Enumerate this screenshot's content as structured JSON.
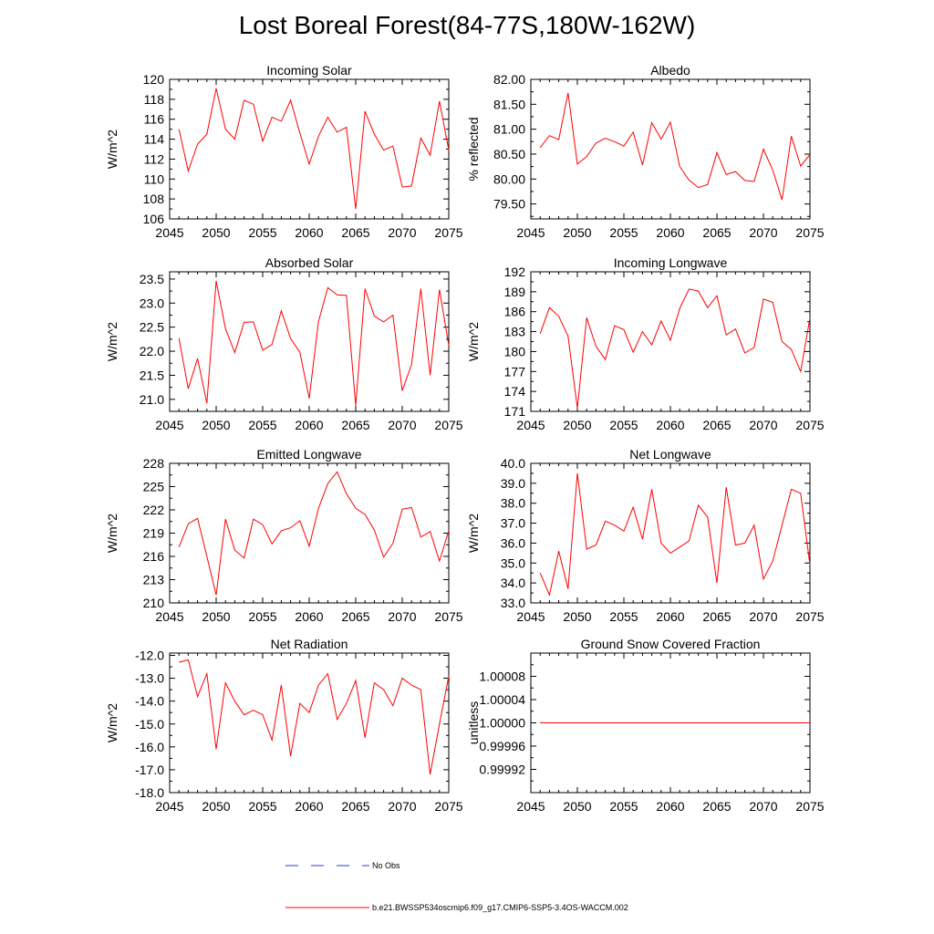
{
  "title": "Lost Boreal Forest(84-77S,180W-162W)",
  "colors": {
    "series": "#ff0000",
    "obs": "#2a3bd6",
    "axis": "#000000"
  },
  "legend": {
    "entries": [
      {
        "label": "No Obs",
        "style": "dashed",
        "color": "#2a3bd6"
      },
      {
        "label": "b.e21.BWSSP534oscmip6.f09_g17.CMIP6-SSP5-3.4OS-WACCM.002",
        "style": "solid",
        "color": "#ff0000"
      }
    ]
  },
  "chart_data": [
    {
      "type": "line",
      "title": "Incoming Solar",
      "ylabel": "W/m^2",
      "xlim": [
        2045,
        2075
      ],
      "ylim": [
        106,
        120
      ],
      "xticks": [
        2045,
        2050,
        2055,
        2060,
        2065,
        2070,
        2075
      ],
      "xtick_labels": [
        "2045",
        "2050",
        "2055",
        "2060",
        "2065",
        "2070",
        "2075"
      ],
      "yticks": [
        106,
        108,
        110,
        112,
        114,
        116,
        118,
        120
      ],
      "ytick_labels": [
        "106",
        "108",
        "110",
        "112",
        "114",
        "116",
        "118",
        "120"
      ],
      "x": [
        2046,
        2047,
        2048,
        2049,
        2050,
        2051,
        2052,
        2053,
        2054,
        2055,
        2056,
        2057,
        2058,
        2059,
        2060,
        2061,
        2062,
        2063,
        2064,
        2065,
        2066,
        2067,
        2068,
        2069,
        2070,
        2071,
        2072,
        2073,
        2074,
        2075
      ],
      "series": [
        {
          "name": "b.e21.BWSSP534oscmip6.f09_g17.CMIP6-SSP5-3.4OS-WACCM.002",
          "values": [
            115.0,
            110.8,
            113.5,
            114.5,
            119.1,
            115.0,
            114.0,
            117.9,
            117.5,
            113.8,
            116.2,
            115.8,
            117.9,
            114.6,
            111.5,
            114.3,
            116.2,
            114.7,
            115.2,
            107.0,
            116.8,
            114.5,
            112.9,
            113.3,
            109.2,
            109.3,
            114.1,
            112.4,
            117.8,
            112.9
          ]
        }
      ]
    },
    {
      "type": "line",
      "title": "Albedo",
      "ylabel": "% reflected",
      "xlim": [
        2045,
        2075
      ],
      "ylim": [
        79.2,
        82.0
      ],
      "xticks": [
        2045,
        2050,
        2055,
        2060,
        2065,
        2070,
        2075
      ],
      "xtick_labels": [
        "2045",
        "2050",
        "2055",
        "2060",
        "2065",
        "2070",
        "2075"
      ],
      "yticks": [
        79.5,
        80.0,
        80.5,
        81.0,
        81.5,
        82.0
      ],
      "ytick_labels": [
        "79.50",
        "80.00",
        "80.50",
        "81.00",
        "81.50",
        "82.00"
      ],
      "x": [
        2046,
        2047,
        2048,
        2049,
        2050,
        2051,
        2052,
        2053,
        2054,
        2055,
        2056,
        2057,
        2058,
        2059,
        2060,
        2061,
        2062,
        2063,
        2064,
        2065,
        2066,
        2067,
        2068,
        2069,
        2070,
        2071,
        2072,
        2073,
        2074,
        2075
      ],
      "series": [
        {
          "name": "b.e21.BWSSP534oscmip6.f09_g17.CMIP6-SSP5-3.4OS-WACCM.002",
          "values": [
            80.63,
            80.87,
            80.79,
            81.73,
            80.3,
            80.45,
            80.72,
            80.82,
            80.75,
            80.66,
            80.94,
            80.28,
            81.13,
            80.8,
            81.14,
            80.25,
            79.98,
            79.83,
            79.89,
            80.53,
            80.09,
            80.15,
            79.97,
            79.95,
            80.6,
            80.18,
            79.58,
            80.86,
            80.26,
            80.49
          ]
        }
      ]
    },
    {
      "type": "line",
      "title": "Absorbed Solar",
      "ylabel": "W/m^2",
      "xlim": [
        2045,
        2075
      ],
      "ylim": [
        20.75,
        23.65
      ],
      "xticks": [
        2045,
        2050,
        2055,
        2060,
        2065,
        2070,
        2075
      ],
      "xtick_labels": [
        "2045",
        "2050",
        "2055",
        "2060",
        "2065",
        "2070",
        "2075"
      ],
      "yticks": [
        21.0,
        21.5,
        22.0,
        22.5,
        23.0,
        23.5
      ],
      "ytick_labels": [
        "21.0",
        "21.5",
        "22.0",
        "22.5",
        "23.0",
        "23.5"
      ],
      "x": [
        2046,
        2047,
        2048,
        2049,
        2050,
        2051,
        2052,
        2053,
        2054,
        2055,
        2056,
        2057,
        2058,
        2059,
        2060,
        2061,
        2062,
        2063,
        2064,
        2065,
        2066,
        2067,
        2068,
        2069,
        2070,
        2071,
        2072,
        2073,
        2074,
        2075
      ],
      "series": [
        {
          "name": "b.e21.BWSSP534oscmip6.f09_g17.CMIP6-SSP5-3.4OS-WACCM.002",
          "values": [
            22.27,
            21.22,
            21.85,
            20.92,
            23.46,
            22.47,
            21.97,
            22.6,
            22.61,
            22.02,
            22.14,
            22.84,
            22.26,
            21.98,
            21.02,
            22.62,
            23.32,
            23.17,
            23.16,
            20.87,
            23.3,
            22.73,
            22.61,
            22.75,
            21.18,
            21.72,
            23.3,
            21.5,
            23.28,
            22.12
          ]
        }
      ]
    },
    {
      "type": "line",
      "title": "Incoming Longwave",
      "ylabel": "W/m^2",
      "xlim": [
        2045,
        2075
      ],
      "ylim": [
        171,
        192
      ],
      "xticks": [
        2045,
        2050,
        2055,
        2060,
        2065,
        2070,
        2075
      ],
      "xtick_labels": [
        "2045",
        "2050",
        "2055",
        "2060",
        "2065",
        "2070",
        "2075"
      ],
      "yticks": [
        171,
        174,
        177,
        180,
        183,
        186,
        189,
        192
      ],
      "ytick_labels": [
        "171",
        "174",
        "177",
        "180",
        "183",
        "186",
        "189",
        "192"
      ],
      "x": [
        2046,
        2047,
        2048,
        2049,
        2050,
        2051,
        2052,
        2053,
        2054,
        2055,
        2056,
        2057,
        2058,
        2059,
        2060,
        2061,
        2062,
        2063,
        2064,
        2065,
        2066,
        2067,
        2068,
        2069,
        2070,
        2071,
        2072,
        2073,
        2074,
        2075
      ],
      "series": [
        {
          "name": "b.e21.BWSSP534oscmip6.f09_g17.CMIP6-SSP5-3.4OS-WACCM.002",
          "values": [
            182.7,
            186.6,
            185.3,
            182.3,
            171.5,
            185.1,
            180.8,
            178.8,
            183.9,
            183.3,
            179.9,
            183.0,
            181.0,
            184.6,
            181.7,
            186.5,
            189.4,
            189.1,
            186.6,
            188.4,
            182.5,
            183.4,
            179.8,
            180.6,
            187.9,
            187.4,
            181.5,
            180.3,
            177.0,
            185.1
          ]
        }
      ]
    },
    {
      "type": "line",
      "title": "Emitted Longwave",
      "ylabel": "W/m^2",
      "xlim": [
        2045,
        2075
      ],
      "ylim": [
        210,
        228
      ],
      "xticks": [
        2045,
        2050,
        2055,
        2060,
        2065,
        2070,
        2075
      ],
      "xtick_labels": [
        "2045",
        "2050",
        "2055",
        "2060",
        "2065",
        "2070",
        "2075"
      ],
      "yticks": [
        210,
        213,
        216,
        219,
        222,
        225,
        228
      ],
      "ytick_labels": [
        "210",
        "213",
        "216",
        "219",
        "222",
        "225",
        "228"
      ],
      "x": [
        2046,
        2047,
        2048,
        2049,
        2050,
        2051,
        2052,
        2053,
        2054,
        2055,
        2056,
        2057,
        2058,
        2059,
        2060,
        2061,
        2062,
        2063,
        2064,
        2065,
        2066,
        2067,
        2068,
        2069,
        2070,
        2071,
        2072,
        2073,
        2074,
        2075
      ],
      "series": [
        {
          "name": "b.e21.BWSSP534oscmip6.f09_g17.CMIP6-SSP5-3.4OS-WACCM.002",
          "values": [
            217.2,
            220.2,
            220.9,
            216.0,
            211.0,
            220.8,
            216.8,
            215.8,
            220.8,
            220.1,
            217.6,
            219.3,
            219.7,
            220.6,
            217.3,
            222.2,
            225.4,
            226.9,
            224.1,
            222.2,
            221.4,
            219.4,
            215.9,
            217.7,
            222.1,
            222.3,
            218.5,
            219.2,
            215.4,
            219.3
          ]
        }
      ]
    },
    {
      "type": "line",
      "title": "Net Longwave",
      "ylabel": "W/m^2",
      "xlim": [
        2045,
        2075
      ],
      "ylim": [
        33.0,
        40.0
      ],
      "xticks": [
        2045,
        2050,
        2055,
        2060,
        2065,
        2070,
        2075
      ],
      "xtick_labels": [
        "2045",
        "2050",
        "2055",
        "2060",
        "2065",
        "2070",
        "2075"
      ],
      "yticks": [
        33.0,
        34.0,
        35.0,
        36.0,
        37.0,
        38.0,
        39.0,
        40.0
      ],
      "ytick_labels": [
        "33.0",
        "34.0",
        "35.0",
        "36.0",
        "37.0",
        "38.0",
        "39.0",
        "40.0"
      ],
      "x": [
        2046,
        2047,
        2048,
        2049,
        2050,
        2051,
        2052,
        2053,
        2054,
        2055,
        2056,
        2057,
        2058,
        2059,
        2060,
        2061,
        2062,
        2063,
        2064,
        2065,
        2066,
        2067,
        2068,
        2069,
        2070,
        2071,
        2072,
        2073,
        2074,
        2075
      ],
      "series": [
        {
          "name": "b.e21.BWSSP534oscmip6.f09_g17.CMIP6-SSP5-3.4OS-WACCM.002",
          "values": [
            34.5,
            33.4,
            35.6,
            33.7,
            39.5,
            35.7,
            35.9,
            37.1,
            36.9,
            36.6,
            37.8,
            36.2,
            38.7,
            36.0,
            35.5,
            35.8,
            36.1,
            37.9,
            37.3,
            34.0,
            38.8,
            35.9,
            36.0,
            36.9,
            34.2,
            35.1,
            36.9,
            38.7,
            38.5,
            34.9
          ]
        }
      ]
    },
    {
      "type": "line",
      "title": "Net Radiation",
      "ylabel": "W/m^2",
      "xlim": [
        2045,
        2075
      ],
      "ylim": [
        -18.0,
        -11.9
      ],
      "xticks": [
        2045,
        2050,
        2055,
        2060,
        2065,
        2070,
        2075
      ],
      "xtick_labels": [
        "2045",
        "2050",
        "2055",
        "2060",
        "2065",
        "2070",
        "2075"
      ],
      "yticks": [
        -18.0,
        -17.0,
        -16.0,
        -15.0,
        -14.0,
        -13.0,
        -12.0
      ],
      "ytick_labels": [
        "-18.0",
        "-17.0",
        "-16.0",
        "-15.0",
        "-14.0",
        "-13.0",
        "-12.0"
      ],
      "x": [
        2046,
        2047,
        2048,
        2049,
        2050,
        2051,
        2052,
        2053,
        2054,
        2055,
        2056,
        2057,
        2058,
        2059,
        2060,
        2061,
        2062,
        2063,
        2064,
        2065,
        2066,
        2067,
        2068,
        2069,
        2070,
        2071,
        2072,
        2073,
        2074,
        2075
      ],
      "series": [
        {
          "name": "b.e21.BWSSP534oscmip6.f09_g17.CMIP6-SSP5-3.4OS-WACCM.002",
          "values": [
            -12.3,
            -12.2,
            -13.8,
            -12.8,
            -16.1,
            -13.2,
            -14.0,
            -14.6,
            -14.4,
            -14.6,
            -15.7,
            -13.3,
            -16.4,
            -14.1,
            -14.5,
            -13.3,
            -12.8,
            -14.8,
            -14.1,
            -13.1,
            -15.6,
            -13.2,
            -13.5,
            -14.2,
            -13.0,
            -13.3,
            -13.5,
            -17.2,
            -15.0,
            -12.9
          ]
        }
      ]
    },
    {
      "type": "line",
      "title": "Ground Snow Covered Fraction",
      "ylabel": "unitless",
      "xlim": [
        2045,
        2075
      ],
      "ylim": [
        0.99988,
        1.00012
      ],
      "xticks": [
        2045,
        2050,
        2055,
        2060,
        2065,
        2070,
        2075
      ],
      "xtick_labels": [
        "2045",
        "2050",
        "2055",
        "2060",
        "2065",
        "2070",
        "2075"
      ],
      "yticks": [
        0.99992,
        0.99996,
        1.0,
        1.00004,
        1.00008
      ],
      "ytick_labels": [
        "0.99992",
        "0.99996",
        "1.00000",
        "1.00004",
        "1.00008"
      ],
      "x": [
        2046,
        2047,
        2048,
        2049,
        2050,
        2051,
        2052,
        2053,
        2054,
        2055,
        2056,
        2057,
        2058,
        2059,
        2060,
        2061,
        2062,
        2063,
        2064,
        2065,
        2066,
        2067,
        2068,
        2069,
        2070,
        2071,
        2072,
        2073,
        2074,
        2075
      ],
      "series": [
        {
          "name": "b.e21.BWSSP534oscmip6.f09_g17.CMIP6-SSP5-3.4OS-WACCM.002",
          "values": [
            1,
            1,
            1,
            1,
            1,
            1,
            1,
            1,
            1,
            1,
            1,
            1,
            1,
            1,
            1,
            1,
            1,
            1,
            1,
            1,
            1,
            1,
            1,
            1,
            1,
            1,
            1,
            1,
            1,
            1
          ]
        }
      ]
    }
  ]
}
